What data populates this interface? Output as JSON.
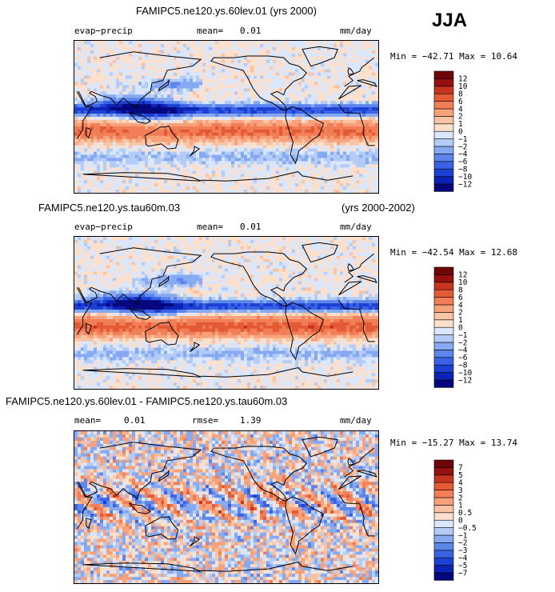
{
  "season": "JJA",
  "panels": [
    {
      "title": "FAMIPC5.ne120.ys.60lev.01 (yrs 2000)",
      "subtitle_right": "",
      "left_label": "evap−precip",
      "stat1_label": "mean=",
      "stat1_value": "0.01",
      "stat2_label": "",
      "stat2_value": "",
      "units": "mm/day",
      "minmax": "Min = −42.71  Max =   10.64"
    },
    {
      "title": "FAMIPC5.ne120.ys.tau60m.03",
      "subtitle_right": "(yrs 2000-2002)",
      "left_label": "evap−precip",
      "stat1_label": "mean=",
      "stat1_value": "0.01",
      "stat2_label": "",
      "stat2_value": "",
      "units": "mm/day",
      "minmax": "Min = −42.54  Max =   12.68"
    },
    {
      "title": "FAMIPC5.ne120.ys.60lev.01 - FAMIPC5.ne120.ys.tau60m.03",
      "subtitle_right": "",
      "left_label": "",
      "stat1_label": "mean=",
      "stat1_value": "0.01",
      "stat2_label": "rmse=",
      "stat2_value": "1.39",
      "units": "mm/day",
      "minmax": "Min = −15.27  Max =   13.74"
    }
  ],
  "chart_data": [
    {
      "type": "heatmap",
      "panel": "top",
      "title": "FAMIPC5.ne120.ys.60lev.01 (yrs 2000)",
      "variable": "evap−precip",
      "units": "mm/day",
      "mean": 0.01,
      "min": -42.71,
      "max": 10.64,
      "levels": [
        "−12",
        "−10",
        "−8",
        "−6",
        "−4",
        "−2",
        "−1",
        "0",
        "1",
        "2",
        "4",
        "6",
        "8",
        "10",
        "12"
      ],
      "colors": [
        "#06067d",
        "#0a23b4",
        "#1d40d4",
        "#3a62e3",
        "#5d86ec",
        "#87a9f2",
        "#b3cbf7",
        "#dae6fb",
        "#fde0cc",
        "#fac3a3",
        "#f7a27b",
        "#f17e57",
        "#e35a35",
        "#c4341e",
        "#961010",
        "#6e0507"
      ]
    },
    {
      "type": "heatmap",
      "panel": "middle",
      "title": "FAMIPC5.ne120.ys.tau60m.03",
      "years": "(yrs 2000-2002)",
      "variable": "evap−precip",
      "units": "mm/day",
      "mean": 0.01,
      "min": -42.54,
      "max": 12.68,
      "levels": [
        "−12",
        "−10",
        "−8",
        "−6",
        "−4",
        "−2",
        "−1",
        "0",
        "1",
        "2",
        "4",
        "6",
        "8",
        "10",
        "12"
      ],
      "colors": [
        "#06067d",
        "#0a23b4",
        "#1d40d4",
        "#3a62e3",
        "#5d86ec",
        "#87a9f2",
        "#b3cbf7",
        "#dae6fb",
        "#fde0cc",
        "#fac3a3",
        "#f7a27b",
        "#f17e57",
        "#e35a35",
        "#c4341e",
        "#961010",
        "#6e0507"
      ]
    },
    {
      "type": "heatmap",
      "panel": "bottom",
      "title": "FAMIPC5.ne120.ys.60lev.01 - FAMIPC5.ne120.ys.tau60m.03",
      "units": "mm/day",
      "mean": 0.01,
      "rmse": 1.39,
      "min": -15.27,
      "max": 13.74,
      "levels": [
        "−7",
        "−5",
        "−4",
        "−3",
        "−2",
        "−1",
        "−0.5",
        "0",
        "0.5",
        "1",
        "2",
        "3",
        "4",
        "5",
        "7"
      ],
      "colors": [
        "#06067d",
        "#0a23b4",
        "#1d40d4",
        "#3a62e3",
        "#5d86ec",
        "#87a9f2",
        "#b3cbf7",
        "#dae6fb",
        "#fde0cc",
        "#fac3a3",
        "#f7a27b",
        "#f17e57",
        "#e35a35",
        "#c4341e",
        "#961010",
        "#6e0507"
      ]
    }
  ]
}
